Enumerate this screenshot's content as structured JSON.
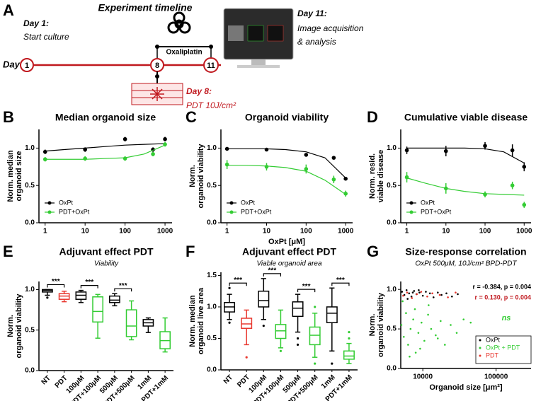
{
  "timeline": {
    "panel": "A",
    "title": "Experiment timeline",
    "axis_label": "Day",
    "day1_label": "Day 1:",
    "day1_text": "Start culture",
    "day8_label": "Day 8:",
    "day8_text": "PDT 10J/cm²",
    "day11_label": "Day 11:",
    "day11_text": [
      "Image acquisition",
      "& analysis"
    ],
    "drug": "Oxaliplatin",
    "days": [
      "1",
      "8",
      "11"
    ]
  },
  "chart_data": [
    {
      "type": "line",
      "panel": "B",
      "title": "Median organoid size",
      "ylabel": [
        "Norm. median",
        "organoid size"
      ],
      "log_x": true,
      "xlim": [
        0.7,
        1500
      ],
      "xticks": [
        1,
        10,
        100,
        1000
      ],
      "ylim": [
        0,
        1.25
      ],
      "yticks": [
        {
          "value": 0,
          "label": "0.0"
        },
        0.5,
        {
          "value": 1,
          "label": "1.0"
        }
      ],
      "x": [
        1,
        10,
        100,
        500,
        1000
      ],
      "fit_x": [
        1,
        3,
        10,
        30,
        100,
        300,
        1000
      ],
      "legend": "lower left",
      "series": [
        {
          "name": "OxPt",
          "color": "#000000",
          "values": [
            0.95,
            0.98,
            1.12,
            0.98,
            1.12
          ],
          "errors": [
            0.03,
            0.03,
            0.03,
            0.03,
            0.03
          ],
          "fit": [
            0.96,
            0.98,
            1.0,
            1.02,
            1.04,
            1.05,
            1.06
          ]
        },
        {
          "name": "PDT+OxPt",
          "color": "#33cc33",
          "values": [
            0.85,
            0.86,
            0.86,
            0.92,
            1.05
          ],
          "errors": [
            0.03,
            0.03,
            0.03,
            0.03,
            0.03
          ],
          "fit": [
            0.85,
            0.85,
            0.85,
            0.86,
            0.87,
            0.92,
            1.04
          ]
        }
      ]
    },
    {
      "type": "line",
      "panel": "C",
      "title": "Organoid viability",
      "ylabel": [
        "Norm.",
        "organoid viability"
      ],
      "xlabel": "OxPt [μM]",
      "log_x": true,
      "xlim": [
        0.7,
        1500
      ],
      "xticks": [
        1,
        10,
        100,
        1000
      ],
      "ylim": [
        0,
        1.25
      ],
      "yticks": [
        {
          "value": 0,
          "label": "0.0"
        },
        0.5,
        {
          "value": 1,
          "label": "1.0"
        }
      ],
      "x": [
        1,
        10,
        100,
        500,
        1000
      ],
      "fit_x": [
        1,
        3,
        10,
        30,
        100,
        300,
        1000
      ],
      "legend": "lower left",
      "series": [
        {
          "name": "OxPt",
          "color": "#000000",
          "values": [
            0.99,
            0.98,
            0.91,
            0.87,
            0.59
          ],
          "errors": [
            0.01,
            0.01,
            0.02,
            0.01,
            0.02
          ],
          "fit": [
            0.99,
            0.99,
            0.99,
            0.98,
            0.95,
            0.87,
            0.6
          ]
        },
        {
          "name": "PDT+OxPt",
          "color": "#33cc33",
          "values": [
            0.78,
            0.75,
            0.72,
            0.58,
            0.39
          ],
          "errors": [
            0.06,
            0.05,
            0.06,
            0.05,
            0.04
          ],
          "fit": [
            0.77,
            0.77,
            0.76,
            0.74,
            0.69,
            0.57,
            0.38
          ]
        }
      ]
    },
    {
      "type": "line",
      "panel": "D",
      "title": "Cumulative viable disease",
      "ylabel": [
        "Norm. resid.",
        "viable disease"
      ],
      "log_x": true,
      "xlim": [
        0.7,
        1500
      ],
      "xticks": [
        1,
        10,
        100,
        1000
      ],
      "ylim": [
        0,
        1.25
      ],
      "yticks": [
        {
          "value": 0,
          "label": "0.0"
        },
        0.5,
        {
          "value": 1,
          "label": "1.0"
        }
      ],
      "x": [
        1,
        10,
        100,
        500,
        1000
      ],
      "fit_x": [
        1,
        3,
        10,
        30,
        100,
        300,
        1000
      ],
      "legend": "lower left",
      "series": [
        {
          "name": "OxPt",
          "color": "#000000",
          "values": [
            0.97,
            0.96,
            1.03,
            0.97,
            0.75
          ],
          "errors": [
            0.05,
            0.07,
            0.05,
            0.08,
            0.06
          ],
          "fit": [
            1.0,
            1.0,
            1.0,
            1.0,
            0.99,
            0.95,
            0.8
          ]
        },
        {
          "name": "PDT+OxPt",
          "color": "#33cc33",
          "values": [
            0.61,
            0.46,
            0.38,
            0.5,
            0.24
          ],
          "errors": [
            0.07,
            0.07,
            0.04,
            0.05,
            0.04
          ],
          "fit": [
            0.6,
            0.53,
            0.46,
            0.42,
            0.39,
            0.38,
            0.37
          ]
        }
      ]
    },
    {
      "type": "box",
      "panel": "E",
      "title": "Adjuvant effect PDT",
      "subtitle": "Viability",
      "ylabel": [
        "Norm.",
        "organoid viability"
      ],
      "ylim": [
        0,
        1.1
      ],
      "yticks": [
        {
          "value": 0,
          "label": "0.0"
        },
        0.5,
        {
          "value": 1,
          "label": "1.0"
        }
      ],
      "categories": [
        "NT",
        "PDT",
        "100μM",
        "PDT+100μM",
        "500μM",
        "PDT+500μM",
        "1mM",
        "PDT+1mM"
      ],
      "colors": [
        "#000000",
        "#e8372e",
        "#000000",
        "#33cc33",
        "#000000",
        "#33cc33",
        "#000000",
        "#33cc33"
      ],
      "significance": [
        "***",
        null,
        "***",
        null,
        "***",
        null,
        null,
        null
      ],
      "boxes": [
        {
          "min": 0.93,
          "q1": 0.97,
          "median": 0.99,
          "q3": 1.0,
          "max": 1.0,
          "outliers": [
            0.9
          ]
        },
        {
          "min": 0.85,
          "q1": 0.88,
          "median": 0.92,
          "q3": 0.95,
          "max": 0.98,
          "outliers": []
        },
        {
          "min": 0.84,
          "q1": 0.88,
          "median": 0.93,
          "q3": 0.97,
          "max": 0.99,
          "outliers": []
        },
        {
          "min": 0.4,
          "q1": 0.6,
          "median": 0.73,
          "q3": 0.91,
          "max": 0.94,
          "outliers": []
        },
        {
          "min": 0.8,
          "q1": 0.84,
          "median": 0.87,
          "q3": 0.92,
          "max": 0.95,
          "outliers": []
        },
        {
          "min": 0.38,
          "q1": 0.42,
          "median": 0.55,
          "q3": 0.75,
          "max": 0.86,
          "outliers": []
        },
        {
          "min": 0.47,
          "q1": 0.55,
          "median": 0.59,
          "q3": 0.63,
          "max": 0.65,
          "outliers": []
        },
        {
          "min": 0.23,
          "q1": 0.27,
          "median": 0.37,
          "q3": 0.48,
          "max": 0.65,
          "outliers": []
        }
      ]
    },
    {
      "type": "box",
      "panel": "F",
      "title": "Adjuvant effect PDT",
      "subtitle": "Viable organoid area",
      "ylabel": [
        "Norm. median",
        "organoid live area"
      ],
      "ylim": [
        0,
        1.55
      ],
      "yticks": [
        {
          "value": 0,
          "label": "0.0"
        },
        0.5,
        {
          "value": 1,
          "label": "1.0"
        },
        1.5
      ],
      "categories": [
        "NT",
        "PDT",
        "100μM",
        "PDT+100μM",
        "500μM",
        "PDT+500μM",
        "1mM",
        "PDT+1mM"
      ],
      "colors": [
        "#000000",
        "#e8372e",
        "#000000",
        "#33cc33",
        "#000000",
        "#33cc33",
        "#000000",
        "#33cc33"
      ],
      "significance": [
        "***",
        null,
        "***",
        null,
        "***",
        null,
        "***",
        null
      ],
      "boxes": [
        {
          "min": 0.8,
          "q1": 0.92,
          "median": 1.0,
          "q3": 1.07,
          "max": 1.2,
          "outliers": [
            1.3,
            0.75
          ]
        },
        {
          "min": 0.4,
          "q1": 0.66,
          "median": 0.73,
          "q3": 0.82,
          "max": 0.95,
          "outliers": [
            0.2
          ]
        },
        {
          "min": 0.8,
          "q1": 1.0,
          "median": 1.1,
          "q3": 1.25,
          "max": 1.45,
          "outliers": [
            0.7
          ]
        },
        {
          "min": 0.35,
          "q1": 0.5,
          "median": 0.62,
          "q3": 0.72,
          "max": 0.95,
          "outliers": [
            0.3
          ]
        },
        {
          "min": 0.6,
          "q1": 0.85,
          "median": 0.98,
          "q3": 1.08,
          "max": 1.2,
          "outliers": [
            0.5,
            0.4
          ]
        },
        {
          "min": 0.2,
          "q1": 0.4,
          "median": 0.55,
          "q3": 0.68,
          "max": 0.9,
          "outliers": [
            0.1,
            1.0
          ]
        },
        {
          "min": 0.3,
          "q1": 0.75,
          "median": 0.9,
          "q3": 1.0,
          "max": 1.3,
          "outliers": [
            0.1
          ]
        },
        {
          "min": 0.1,
          "q1": 0.17,
          "median": 0.22,
          "q3": 0.3,
          "max": 0.42,
          "outliers": [
            0.5,
            0.6
          ]
        }
      ]
    },
    {
      "type": "scatter",
      "panel": "G",
      "title": "Size-response correlation",
      "subtitle": "OxPt 500μM, 10J/cm² BPD-PDT",
      "ylabel": [
        "Norm.",
        "organoid viability"
      ],
      "xlabel": "Organoid size [μm²]",
      "log_x": true,
      "xlim": [
        5000,
        300000
      ],
      "xticks": [
        10000,
        100000
      ],
      "ylim": [
        0,
        1.1
      ],
      "yticks": [
        {
          "value": 0,
          "label": "0.0"
        },
        0.5,
        {
          "value": 1,
          "label": "1.0"
        }
      ],
      "legend": "lower right",
      "annotations": [
        {
          "text": "r = -0.384, p = 0.004",
          "color": "#000000"
        },
        {
          "text": "r = 0.130, p = 0.004",
          "color": "#c0181e"
        },
        {
          "text": "ns",
          "color": "#33cc33"
        }
      ],
      "series": [
        {
          "name": "OxPt",
          "color": "#000000",
          "x": [
            5200,
            5600,
            6000,
            6500,
            7000,
            7600,
            8200,
            9000,
            10000,
            11000,
            12500,
            14000,
            16000,
            18000,
            21000,
            25000,
            30000,
            6200,
            7300,
            8800
          ],
          "values": [
            0.97,
            0.93,
            0.99,
            0.95,
            0.91,
            0.98,
            0.94,
            0.96,
            0.92,
            0.97,
            0.95,
            0.9,
            0.96,
            0.93,
            0.95,
            0.91,
            0.94,
            0.88,
            0.96,
            0.99
          ]
        },
        {
          "name": "OxPt + PDT",
          "color": "#33cc33",
          "x": [
            5100,
            5500,
            5900,
            6300,
            6800,
            7400,
            8000,
            8700,
            9600,
            10500,
            11800,
            13000,
            15000,
            17500,
            20000,
            24000,
            29000,
            36000,
            45000,
            5300,
            6600,
            7800,
            9200,
            12000,
            16000
          ],
          "values": [
            0.55,
            0.4,
            0.7,
            0.3,
            0.5,
            0.62,
            0.2,
            0.45,
            0.58,
            0.35,
            0.68,
            0.5,
            0.42,
            0.6,
            0.3,
            0.55,
            0.45,
            0.62,
            0.58,
            0.85,
            0.15,
            0.75,
            0.25,
            0.8,
            0.38
          ]
        },
        {
          "name": "PDT",
          "color": "#e8372e",
          "x": [
            5400,
            6100,
            7100,
            8300,
            9500,
            11500,
            13500,
            17000,
            22000,
            28000
          ],
          "values": [
            0.92,
            0.96,
            0.89,
            0.94,
            0.97,
            0.91,
            0.95,
            0.93,
            0.9,
            0.96
          ]
        }
      ]
    }
  ]
}
